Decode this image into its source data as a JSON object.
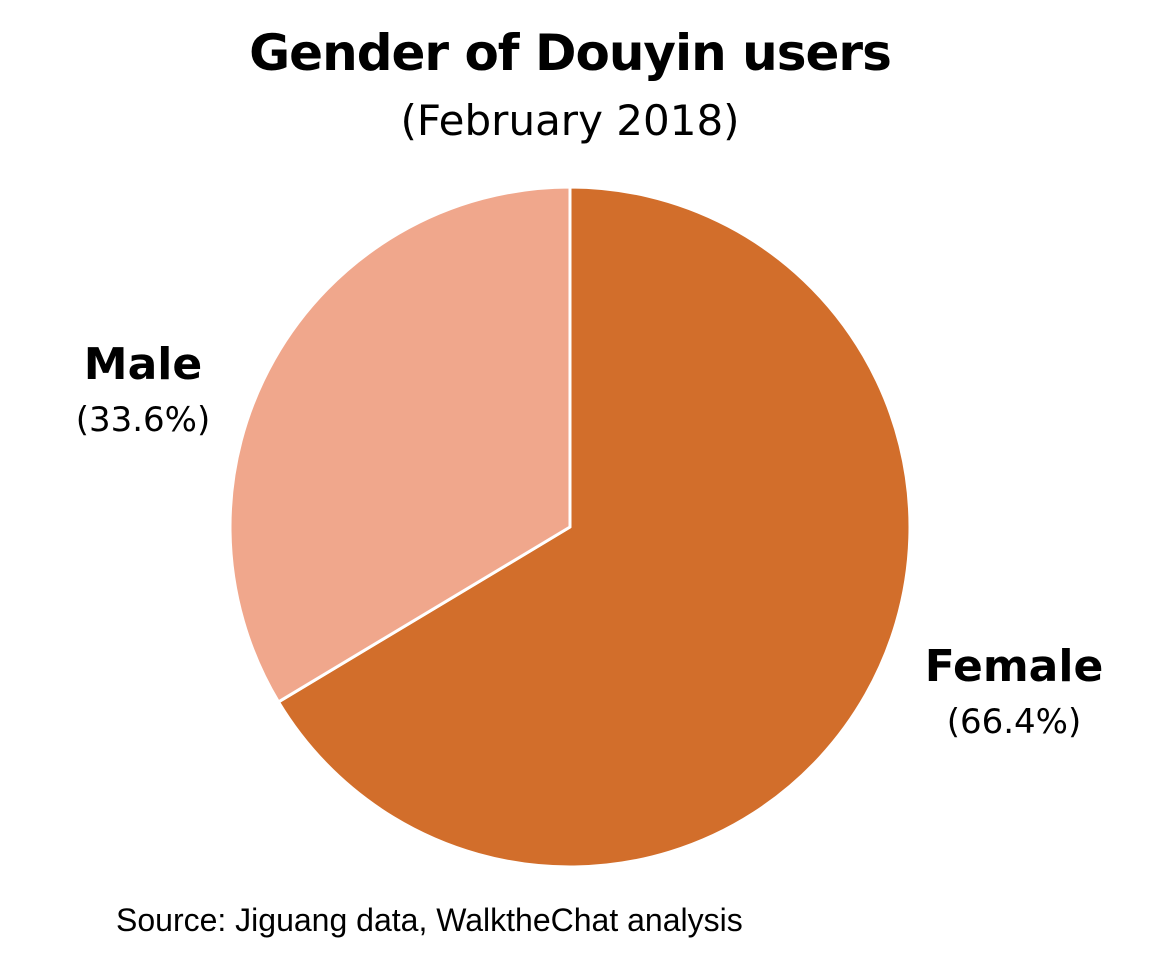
{
  "chart_data": {
    "type": "pie",
    "title": "Gender of Douyin users",
    "subtitle": "(February 2018)",
    "source": "Source: Jiguang data, WalktheChat analysis",
    "slices": [
      {
        "label": "Female",
        "value": 66.4,
        "value_label": "(66.4%)",
        "color": "#d26e2b"
      },
      {
        "label": "Male",
        "value": 33.6,
        "value_label": "(33.6%)",
        "color": "#f0a78c"
      }
    ],
    "start": "12 o'clock",
    "direction": "clockwise",
    "legend": "none"
  }
}
